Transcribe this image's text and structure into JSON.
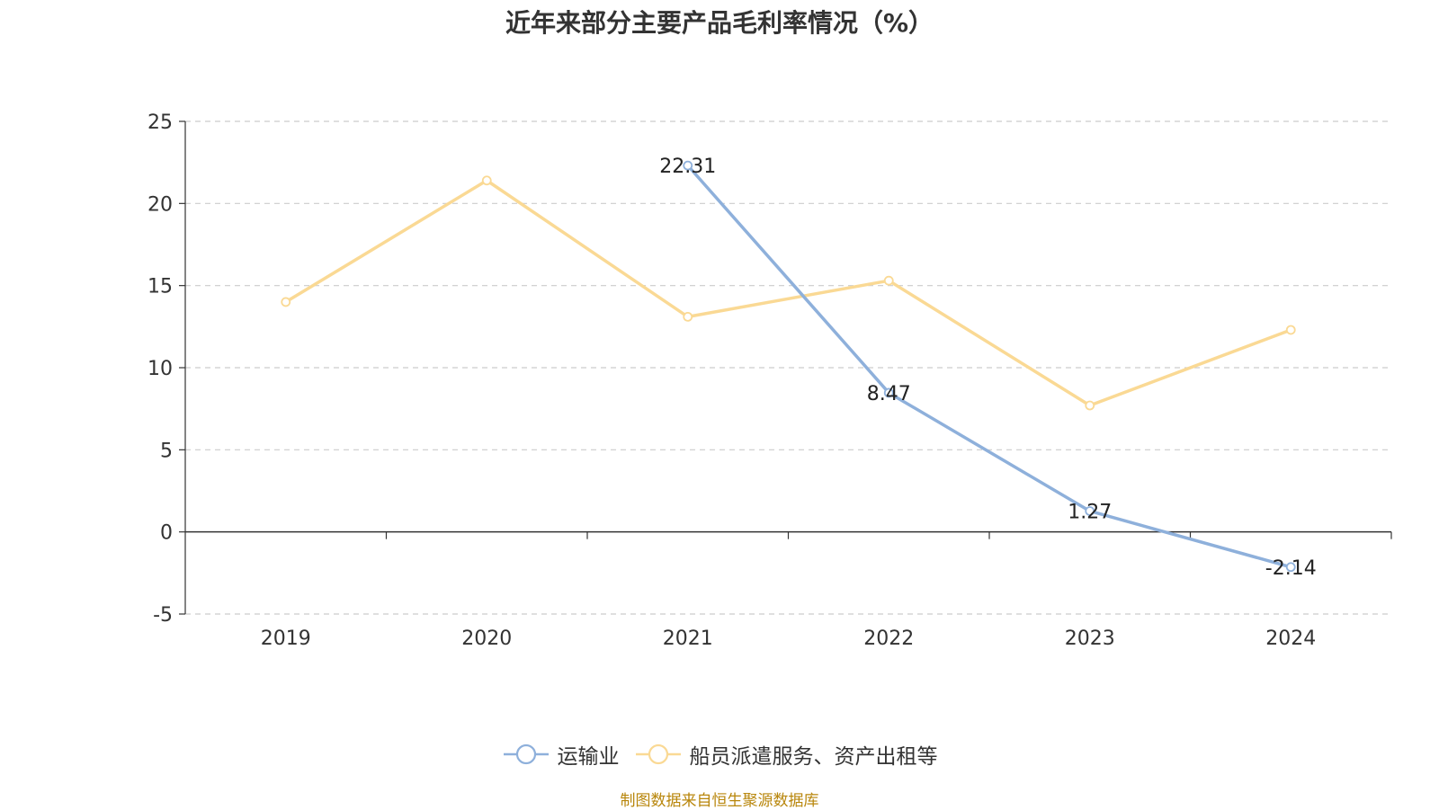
{
  "chart_data": {
    "type": "line",
    "title": "近年来部分主要产品毛利率情况（%）",
    "categories": [
      "2019",
      "2020",
      "2021",
      "2022",
      "2023",
      "2024"
    ],
    "ylim": [
      -5,
      25
    ],
    "y_ticks": [
      25,
      20,
      15,
      10,
      5,
      0,
      -5
    ],
    "grid": true,
    "legend_position": "bottom",
    "series": [
      {
        "name": "运输业",
        "color": "#8eb0db",
        "values": [
          null,
          null,
          22.31,
          8.47,
          1.27,
          -2.14
        ],
        "labels": [
          "",
          "",
          "22.31",
          "8.47",
          "1.27",
          "-2.14"
        ]
      },
      {
        "name": "船员派遣服务、资产出租等",
        "color": "#fad994",
        "values": [
          14.0,
          21.4,
          13.1,
          15.3,
          7.7,
          12.3
        ],
        "labels": [
          "",
          "",
          "",
          "",
          "",
          ""
        ]
      }
    ]
  },
  "source_note": "制图数据来自恒生聚源数据库"
}
